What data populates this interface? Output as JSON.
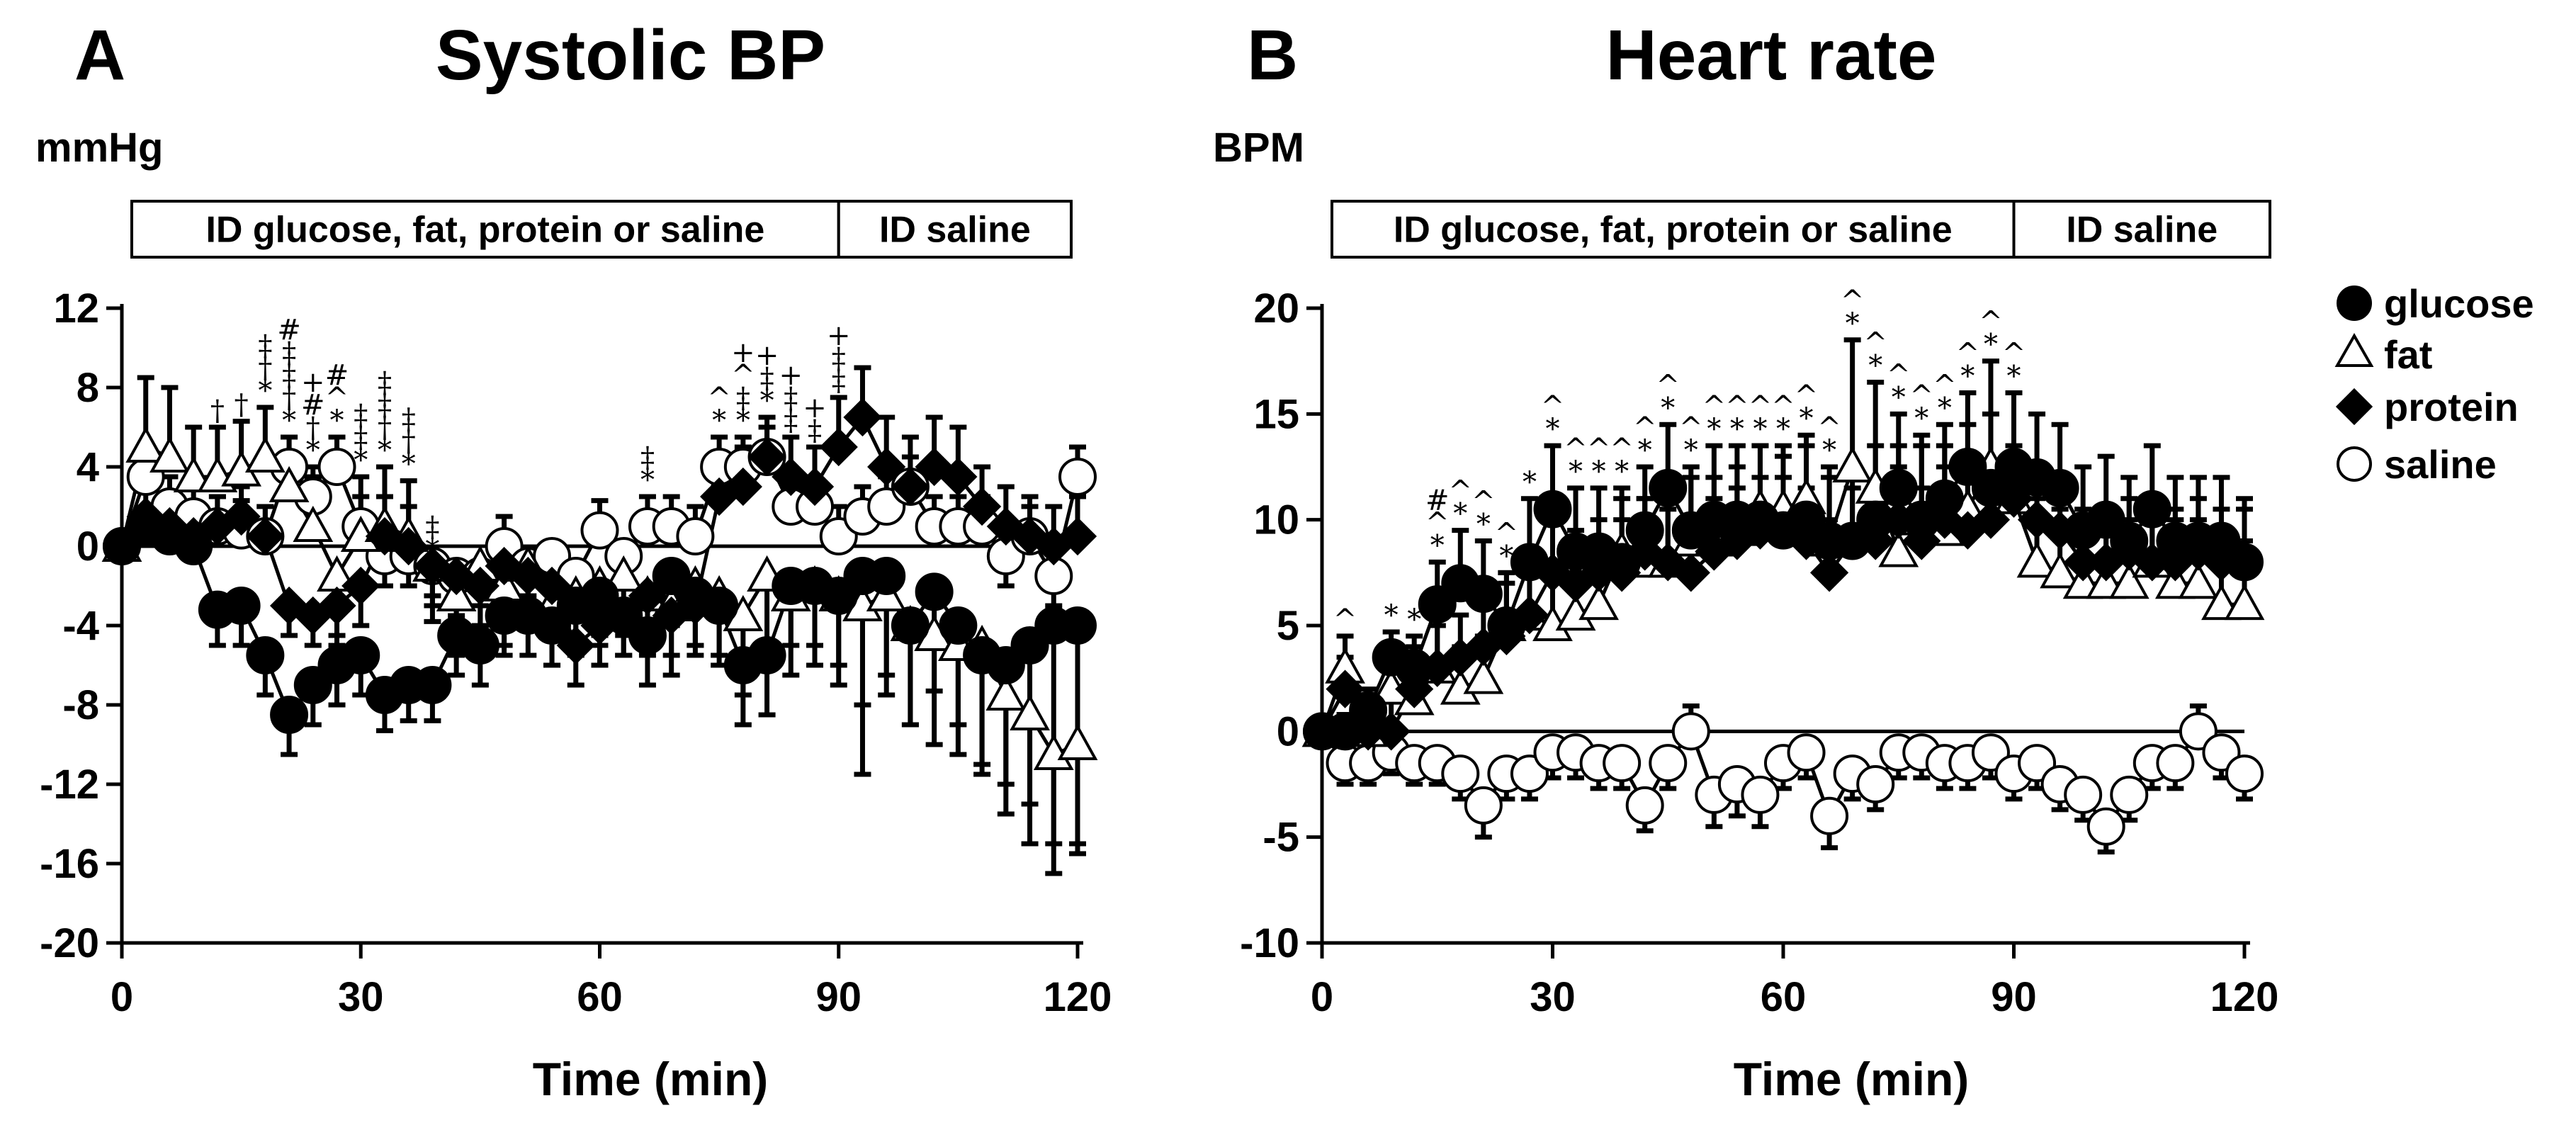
{
  "chart_data": [
    {
      "type": "line",
      "panel_letter": "A",
      "title": "Systolic BP",
      "ylabel": "mmHg",
      "xlabel": "Time (min)",
      "xlim": [
        0,
        120
      ],
      "ylim": [
        -20,
        12
      ],
      "xticks": [
        0,
        30,
        60,
        90,
        120
      ],
      "yticks": [
        -20,
        -16,
        -12,
        -8,
        -4,
        0,
        4,
        8,
        12
      ],
      "reference_line": 0,
      "phases": [
        {
          "label": "ID glucose, fat, protein or saline",
          "from": 0,
          "to": 90
        },
        {
          "label": "ID saline",
          "from": 90,
          "to": 120
        }
      ],
      "x": [
        0,
        3,
        6,
        9,
        12,
        15,
        18,
        21,
        24,
        27,
        30,
        33,
        36,
        39,
        42,
        45,
        48,
        51,
        54,
        57,
        60,
        63,
        66,
        69,
        72,
        75,
        78,
        81,
        84,
        87,
        90,
        93,
        96,
        99,
        102,
        105,
        108,
        111,
        114,
        117,
        120
      ],
      "series": [
        {
          "name": "glucose",
          "marker": "filled-circle",
          "values": [
            0,
            1,
            0.5,
            0,
            -3.2,
            -3,
            -5.5,
            -8.5,
            -7,
            -6,
            -5.5,
            -7.5,
            -7,
            -7,
            -4.5,
            -5,
            -3.5,
            -3.5,
            -4,
            -3,
            -2.5,
            -3.5,
            -4.5,
            -1.5,
            -2.5,
            -3,
            -6,
            -5.5,
            -2,
            -2,
            -2.5,
            -1.5,
            -1.5,
            -4,
            -2.3,
            -4,
            -5.5,
            -6,
            -5,
            -4,
            -4
          ],
          "err": [
            0,
            0.8,
            1,
            1.2,
            1.8,
            2,
            2,
            2,
            2,
            2,
            2,
            1.8,
            1.8,
            1.8,
            2,
            2,
            2,
            2,
            2,
            2,
            2,
            2,
            2.5,
            2.5,
            2.5,
            2.5,
            3,
            3,
            3,
            3,
            3.5,
            10,
            5,
            5,
            5,
            5,
            6,
            6,
            8,
            11,
            11
          ]
        },
        {
          "name": "fat",
          "marker": "open-triangle",
          "values": [
            0,
            5,
            4.5,
            3.5,
            3.5,
            3.8,
            4.5,
            3,
            1,
            -1.5,
            0.5,
            1,
            0.5,
            -1,
            -2.5,
            -1,
            -2,
            -1,
            -3,
            -2.5,
            -2,
            -1.5,
            -2.5,
            -3,
            -2,
            -2.5,
            -3.5,
            -1.5,
            -2.5,
            -2,
            -2.5,
            -3,
            -2.5,
            -4,
            -4.5,
            -5,
            -5,
            -7.5,
            -8.5,
            -10.5,
            -10
          ],
          "err": [
            0,
            3.5,
            3.5,
            2.5,
            2.5,
            2.5,
            2.5,
            2.5,
            2.5,
            3,
            3,
            3,
            2.8,
            2.8,
            3,
            3,
            3,
            3,
            3,
            3,
            3,
            3,
            3,
            3.5,
            3.5,
            3.5,
            4,
            4,
            4,
            4,
            4.5,
            5,
            5,
            5,
            5.5,
            5.5,
            6,
            6,
            6.5,
            6,
            5.5
          ]
        },
        {
          "name": "protein",
          "marker": "filled-diamond",
          "values": [
            0,
            1.5,
            1,
            0.5,
            1,
            1.5,
            0.5,
            -3,
            -3.5,
            -3,
            -2,
            0.5,
            0,
            -1,
            -1.5,
            -2,
            -1,
            -1.5,
            -2,
            -5,
            -4,
            -3.5,
            -2.5,
            -3.5,
            -3,
            2.5,
            3,
            4.5,
            3.5,
            3,
            5,
            6.5,
            4,
            3,
            4,
            3.5,
            2,
            1,
            0.5,
            0,
            0.5
          ],
          "err": [
            0,
            1.5,
            1.5,
            1.5,
            1.5,
            1.5,
            1.5,
            1.5,
            1.5,
            2,
            2,
            2,
            2,
            2,
            2,
            2,
            2,
            2,
            2,
            2,
            2,
            2,
            2,
            2,
            2,
            2,
            2,
            2,
            2,
            2,
            2.5,
            2.5,
            2.5,
            2.5,
            2.5,
            2.5,
            2,
            2,
            2,
            2,
            2
          ]
        },
        {
          "name": "saline",
          "marker": "open-circle",
          "values": [
            0,
            3.5,
            2,
            1.5,
            1,
            0.8,
            0.5,
            4,
            2.5,
            4,
            1,
            -0.5,
            -0.5,
            -1,
            -1.5,
            -1.5,
            0,
            -1,
            -0.5,
            -1.5,
            0.8,
            -0.5,
            1,
            1,
            0.5,
            4,
            4,
            4.5,
            2,
            2,
            0.5,
            1.5,
            2,
            3,
            1,
            1,
            1,
            -0.5,
            0.5,
            -1.5,
            3.5
          ],
          "err": [
            0,
            1.5,
            1.5,
            1.5,
            1.5,
            1.5,
            1.5,
            1.5,
            1.5,
            1.5,
            1.5,
            1.5,
            1.5,
            1.5,
            1.5,
            1.5,
            1.5,
            1.5,
            1.5,
            1.5,
            1.5,
            1.5,
            1.5,
            1.5,
            1.5,
            1.5,
            1.5,
            1.5,
            1.5,
            1.5,
            1.5,
            1.5,
            1.5,
            1.5,
            1.5,
            1.5,
            1.5,
            1.5,
            1.5,
            1.5,
            1.5
          ]
        }
      ],
      "annotations": [
        {
          "x": 12,
          "stack": [
            "†"
          ]
        },
        {
          "x": 15,
          "stack": [
            "†"
          ]
        },
        {
          "x": 18,
          "stack": [
            "*",
            "†",
            "‡"
          ]
        },
        {
          "x": 21,
          "stack": [
            "*",
            "†",
            "‡",
            "‡",
            "#"
          ]
        },
        {
          "x": 24,
          "stack": [
            "*",
            "†",
            "#",
            "+"
          ]
        },
        {
          "x": 27,
          "stack": [
            "*",
            "^",
            "#"
          ]
        },
        {
          "x": 30,
          "stack": [
            "*",
            "‡",
            "‡"
          ]
        },
        {
          "x": 33,
          "stack": [
            "*",
            "†",
            "‡",
            "‡"
          ]
        },
        {
          "x": 36,
          "stack": [
            "*",
            "†",
            "‡"
          ]
        },
        {
          "x": 39,
          "stack": [
            "*",
            "‡"
          ]
        },
        {
          "x": 66,
          "stack": [
            "*",
            "‡"
          ]
        },
        {
          "x": 75,
          "stack": [
            "*",
            "^"
          ]
        },
        {
          "x": 78,
          "stack": [
            "*",
            "‡",
            "^",
            "+"
          ]
        },
        {
          "x": 81,
          "stack": [
            "*",
            "‡",
            "+"
          ]
        },
        {
          "x": 84,
          "stack": [
            "‡",
            "‡",
            "+"
          ]
        },
        {
          "x": 87,
          "stack": [
            "‡",
            "+"
          ]
        },
        {
          "x": 90,
          "stack": [
            "‡",
            "‡",
            "+"
          ]
        }
      ]
    },
    {
      "type": "line",
      "panel_letter": "B",
      "title": "Heart rate",
      "ylabel": "BPM",
      "xlabel": "Time (min)",
      "xlim": [
        0,
        120
      ],
      "ylim": [
        -10,
        20
      ],
      "xticks": [
        0,
        30,
        60,
        90,
        120
      ],
      "yticks": [
        -10,
        -5,
        0,
        5,
        10,
        15,
        20
      ],
      "reference_line": 0,
      "phases": [
        {
          "label": "ID glucose, fat, protein or saline",
          "from": 0,
          "to": 90
        },
        {
          "label": "ID saline",
          "from": 90,
          "to": 120
        }
      ],
      "x": [
        0,
        3,
        6,
        9,
        12,
        15,
        18,
        21,
        24,
        27,
        30,
        33,
        36,
        39,
        42,
        45,
        48,
        51,
        54,
        57,
        60,
        63,
        66,
        69,
        72,
        75,
        78,
        81,
        84,
        87,
        90,
        93,
        96,
        99,
        102,
        105,
        108,
        111,
        114,
        117,
        120
      ],
      "series": [
        {
          "name": "glucose",
          "marker": "filled-circle",
          "values": [
            0,
            0,
            1,
            3.5,
            3,
            6,
            7,
            6.5,
            5,
            8,
            10.5,
            8.5,
            8.5,
            8,
            9.5,
            11.5,
            9.5,
            10,
            10,
            10,
            9.5,
            10,
            9,
            9,
            10,
            11.5,
            10,
            11,
            12.5,
            11.5,
            12.5,
            12,
            11.5,
            9.5,
            10,
            9,
            10.5,
            9,
            9,
            9,
            8
          ],
          "err": [
            0,
            0.8,
            1,
            1.2,
            1.5,
            2,
            2.5,
            2.5,
            2.5,
            3,
            3,
            3,
            3,
            3,
            3,
            3,
            3,
            3.5,
            3.5,
            3.5,
            3.5,
            3.5,
            3.5,
            3.5,
            3.5,
            3.5,
            3.5,
            3.5,
            3.5,
            3.5,
            3.5,
            3,
            3,
            3,
            3,
            3,
            3,
            3,
            3,
            3,
            3
          ]
        },
        {
          "name": "fat",
          "marker": "open-triangle",
          "values": [
            0,
            3,
            0,
            2,
            1.5,
            3,
            2,
            2.5,
            5,
            5.5,
            5,
            5.5,
            6,
            8.5,
            8,
            8,
            9,
            9,
            9.5,
            10.5,
            10.5,
            11,
            9,
            12.5,
            11.5,
            8.5,
            10,
            9.5,
            10.5,
            12.5,
            11,
            8,
            7.5,
            7,
            7,
            7,
            8,
            7,
            7,
            6,
            6
          ],
          "err": [
            0,
            1.5,
            1.5,
            1.5,
            2,
            2,
            2,
            2,
            2.5,
            3,
            3,
            3,
            3,
            3,
            3,
            3,
            3,
            3,
            3,
            3,
            3,
            3,
            3,
            6,
            5,
            5,
            4,
            4,
            4,
            5,
            5,
            3,
            3,
            3,
            3,
            3,
            3,
            3,
            3,
            3,
            3
          ]
        },
        {
          "name": "protein",
          "marker": "filled-diamond",
          "values": [
            0,
            2,
            0,
            0,
            2,
            3,
            3.5,
            4,
            4.5,
            5.5,
            7.5,
            7,
            7.5,
            7.5,
            8.5,
            8,
            7.5,
            8.5,
            9,
            9.5,
            9.5,
            9,
            7.5,
            9,
            9,
            10,
            9,
            10,
            9.5,
            10,
            11,
            10,
            9.5,
            8,
            8,
            8.5,
            8,
            8,
            8.5,
            8,
            8
          ],
          "err": [
            0,
            1.5,
            1.5,
            1.5,
            2,
            2,
            2,
            2.5,
            2.5,
            2.5,
            2.5,
            2.5,
            2.5,
            2.5,
            2.5,
            2.5,
            2.5,
            2.5,
            2.5,
            2.5,
            2.5,
            2.5,
            2.5,
            2.5,
            2.5,
            2.5,
            2.5,
            2.5,
            2.5,
            2.5,
            2.5,
            2.5,
            2.5,
            2.5,
            2.5,
            2.5,
            2.5,
            2.5,
            2.5,
            2.5,
            2.5
          ]
        },
        {
          "name": "saline",
          "marker": "open-circle",
          "values": [
            0,
            -1.5,
            -1.5,
            -1,
            -1.5,
            -1.5,
            -2,
            -3.5,
            -2,
            -2,
            -1,
            -1,
            -1.5,
            -1.5,
            -3.5,
            -1.5,
            0,
            -3,
            -2.5,
            -3,
            -1.5,
            -1,
            -4,
            -2,
            -2.5,
            -1,
            -1,
            -1.5,
            -1.5,
            -1,
            -2,
            -1.5,
            -2.5,
            -3,
            -4.5,
            -3,
            -1.5,
            -1.5,
            0,
            -1,
            -2
          ],
          "err": [
            0,
            1,
            1,
            1,
            1,
            1,
            1.2,
            1.5,
            1.2,
            1.2,
            1.2,
            1.2,
            1.2,
            1.2,
            1.2,
            1.2,
            1.2,
            1.5,
            1.5,
            1.5,
            1.2,
            1.2,
            1.5,
            1.2,
            1.2,
            1.2,
            1.2,
            1.2,
            1.2,
            1.2,
            1.2,
            1.2,
            1.2,
            1.2,
            1.2,
            1.2,
            1.2,
            1.2,
            1.2,
            1.2,
            1.2
          ]
        }
      ],
      "annotations": [
        {
          "x": 3,
          "stack": [
            "^"
          ]
        },
        {
          "x": 9,
          "stack": [
            "*"
          ]
        },
        {
          "x": 12,
          "stack": [
            "*"
          ]
        },
        {
          "x": 15,
          "stack": [
            "*",
            "^",
            "#"
          ]
        },
        {
          "x": 18,
          "stack": [
            "*",
            "^"
          ]
        },
        {
          "x": 21,
          "stack": [
            "*",
            "^"
          ]
        },
        {
          "x": 24,
          "stack": [
            "*",
            "^"
          ]
        },
        {
          "x": 27,
          "stack": [
            "*"
          ]
        },
        {
          "x": 30,
          "stack": [
            "*",
            "^"
          ]
        },
        {
          "x": 33,
          "stack": [
            "*",
            "^"
          ]
        },
        {
          "x": 36,
          "stack": [
            "*",
            "^"
          ]
        },
        {
          "x": 39,
          "stack": [
            "*",
            "^"
          ]
        },
        {
          "x": 42,
          "stack": [
            "*",
            "^"
          ]
        },
        {
          "x": 45,
          "stack": [
            "*",
            "^"
          ]
        },
        {
          "x": 48,
          "stack": [
            "*",
            "^"
          ]
        },
        {
          "x": 51,
          "stack": [
            "*",
            "^"
          ]
        },
        {
          "x": 54,
          "stack": [
            "*",
            "^"
          ]
        },
        {
          "x": 57,
          "stack": [
            "*",
            "^"
          ]
        },
        {
          "x": 60,
          "stack": [
            "*",
            "^"
          ]
        },
        {
          "x": 63,
          "stack": [
            "*",
            "^"
          ]
        },
        {
          "x": 66,
          "stack": [
            "*",
            "^"
          ]
        },
        {
          "x": 69,
          "stack": [
            "*",
            "^"
          ]
        },
        {
          "x": 72,
          "stack": [
            "*",
            "^"
          ]
        },
        {
          "x": 75,
          "stack": [
            "*",
            "^"
          ]
        },
        {
          "x": 78,
          "stack": [
            "*",
            "^"
          ]
        },
        {
          "x": 81,
          "stack": [
            "*",
            "^"
          ]
        },
        {
          "x": 84,
          "stack": [
            "*",
            "^"
          ]
        },
        {
          "x": 87,
          "stack": [
            "*",
            "^"
          ]
        },
        {
          "x": 90,
          "stack": [
            "*",
            "^"
          ]
        }
      ]
    }
  ],
  "legend": {
    "items": [
      {
        "name": "glucose",
        "marker": "filled-circle"
      },
      {
        "name": "fat",
        "marker": "open-triangle"
      },
      {
        "name": "protein",
        "marker": "filled-diamond"
      },
      {
        "name": "saline",
        "marker": "open-circle"
      }
    ]
  }
}
